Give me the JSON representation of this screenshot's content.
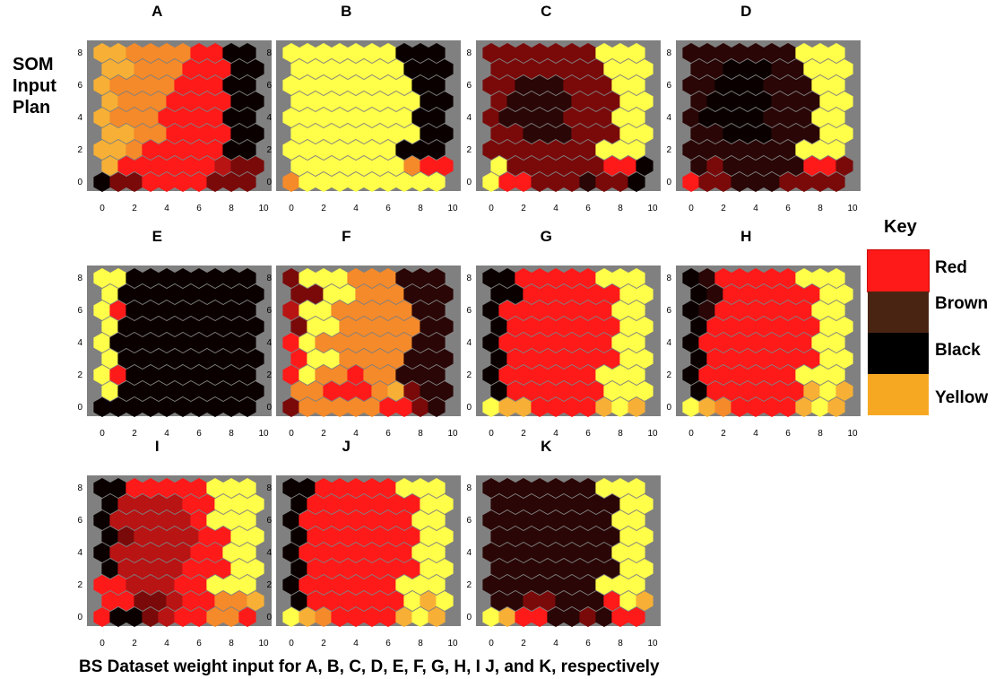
{
  "side_title": [
    "SOM",
    "Input",
    "Plan"
  ],
  "caption": "BS Dataset weight input for A, B, C, D, E, F, G, H, I J, and K, respectively",
  "key": {
    "title": "Key",
    "entries": [
      {
        "label": "Red",
        "color": "#ff1a1a"
      },
      {
        "label": "Brown",
        "color": "#4a2412"
      },
      {
        "label": "Black",
        "color": "#000000"
      },
      {
        "label": "Yellow",
        "color": "#f7a823"
      }
    ]
  },
  "palette": {
    "Y": "#ffff4a",
    "R": "#ff1a1a",
    "O": "#f58a2a",
    "o": "#f7b035",
    "D": "#7a0a0a",
    "M": "#b81414",
    "K": "#0a0000",
    "k": "#2a0606",
    "background": "#808080"
  },
  "chart_data": {
    "type": "hexbin-som",
    "grid": {
      "columns": 10,
      "rows": 9
    },
    "xlim": [
      0,
      10
    ],
    "ylim": [
      0,
      8
    ],
    "x_ticks": [
      "0",
      "2",
      "4",
      "6",
      "8",
      "10"
    ],
    "y_ticks": [
      "0",
      "2",
      "4",
      "6",
      "8"
    ],
    "legend_position": "right",
    "panels": [
      {
        "label": "A",
        "rows": [
          "ooOOOORRKK",
          "ooOOORRRKK",
          "oOOOORRRKK",
          "oOOORRRRKK",
          "oOOORRRRKK",
          "ooOORRRRKK",
          "ooORRRRRKK",
          "oRRRRRRMDD",
          "KDDRRRRDDD"
        ]
      },
      {
        "label": "B",
        "rows": [
          "YYYYYYYKKK",
          "YYYYYYYKKK",
          "YYYYYYYYKK",
          "YYYYYYYYKK",
          "YYYYYYYYKK",
          "YYYYYYYYKK",
          "YYYYYYYKKK",
          "YYYYYYYORR",
          "OYYYYYYYYY"
        ]
      },
      {
        "label": "C",
        "rows": [
          "DDDDDDDYYY",
          "DDDDDDDYYY",
          "DDkkkDDDYY",
          "DkkkkDDDYY",
          "DkkkkDDDYY",
          "DDkkkDDDYY",
          "DDDDDDDYYY",
          "YDDDDDDRRK",
          "YRRDDDkDDK"
        ]
      },
      {
        "label": "D",
        "rows": [
          "kkkkkkkYYY",
          "kkKKKkkYYY",
          "kkKKKkkkYY",
          "kKKKKkkkYY",
          "kKKKKkkkYY",
          "kkKKKkkkYY",
          "kkkkkkkYYY",
          "kDkkkkkRRD",
          "RDDkkkDDDD"
        ]
      },
      {
        "label": "E",
        "rows": [
          "YYKKKKKKKK",
          "YKKKKKKKKK",
          "YRKKKKKKKK",
          "YKKKKKKKKK",
          "YKKKKKKKKK",
          "YKKKKKKKKK",
          "YRKKKKKKKK",
          "YKKKKKKKKK",
          "KKKKKKKKKK"
        ]
      },
      {
        "label": "F",
        "rows": [
          "DYYYOOOkkk",
          "DDYYOOOkkk",
          "MYYOOOOOkk",
          "DYYOOOOOkk",
          "RYOOOOOOkk",
          "RYYOOOOkkk",
          "RYOOROOkkk",
          "OORRROoDkk",
          "DOOOOORRDk"
        ]
      },
      {
        "label": "G",
        "rows": [
          "KKRRRRRYYY",
          "KKRRRRRRYY",
          "KRRRRRRRYY",
          "KRRRRRRRYY",
          "KRRRRRRRYY",
          "KRRRRRRRYY",
          "KRRRRRRYYY",
          "KRRRRRRYYY",
          "YooRRRRoYo"
        ]
      },
      {
        "label": "H",
        "rows": [
          "KkRRRRRYYY",
          "KkRRRRRRYY",
          "KkRRRRRRYY",
          "KRRRRRRRYY",
          "KRRRRRRRYY",
          "KRRRRRRRYY",
          "KRRRRRRYYY",
          "KRRRRRRoYo",
          "YoORRRRoYo"
        ]
      },
      {
        "label": "I",
        "rows": [
          "KKRRRRRYYY",
          "KMMMMRRYYY",
          "KMMMMMRYYY",
          "KDMMMMRRYY",
          "KMMMMMRRYY",
          "KMMMMRRRYY",
          "RRMMMRRYYY",
          "RRDDMRROOo",
          "RKKDMRROOR"
        ]
      },
      {
        "label": "J",
        "rows": [
          "KKRRRRRYYY",
          "KRRRRRRRYY",
          "KRRRRRRRYY",
          "KRRRRRRRYY",
          "KRRRRRRRYY",
          "KRRRRRRRYY",
          "KRRRRRRYYY",
          "KRRRRRRYoY",
          "YoORRRRoYo"
        ]
      },
      {
        "label": "K",
        "rows": [
          "kkkkkkkYYY",
          "kkkkkkkkYY",
          "kkkkkkkkYY",
          "kkkkkkkkYY",
          "kkkkkkkkYY",
          "kkkkkkkkYY",
          "kkkkkkkYYY",
          "kkDDkkkRYo",
          "YoRRkkDkRR"
        ]
      }
    ]
  }
}
